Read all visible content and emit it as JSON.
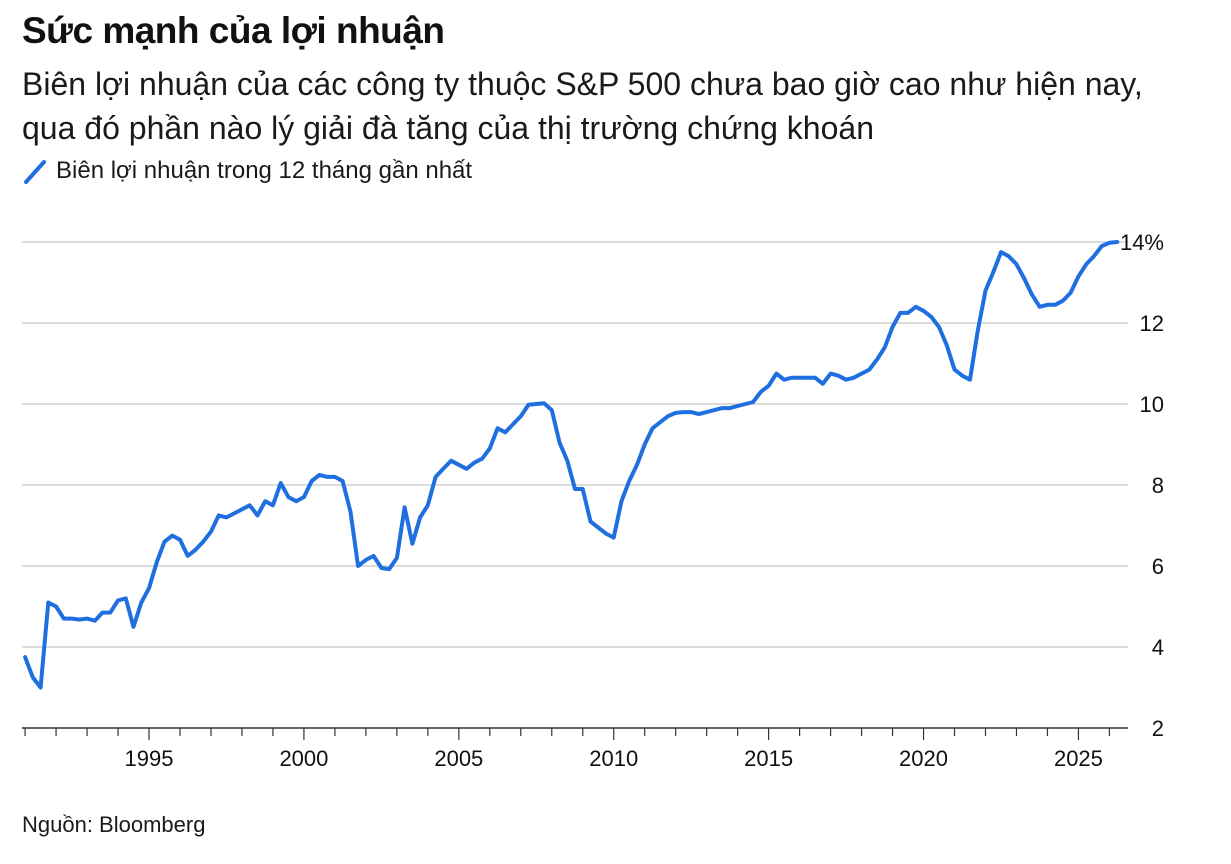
{
  "header": {
    "title": "Sức mạnh của lợi nhuận",
    "subtitle": "Biên lợi nhuận của các công ty thuộc S&P 500 chưa bao giờ cao như hiện nay, qua đó phần nào lý giải đà tăng của thị trường chứng khoán"
  },
  "footer": {
    "source": "Nguồn: Bloomberg"
  },
  "colors": {
    "line": "#1f6fe0",
    "grid": "#d0d0d0",
    "axis": "#333333"
  },
  "chart_data": {
    "type": "line",
    "title": "Sức mạnh của lợi nhuận",
    "subtitle": "Biên lợi nhuận của các công ty thuộc S&P 500 chưa bao giờ cao như hiện nay, qua đó phần nào lý giải đà tăng của thị trường chứng khoán",
    "ylim": [
      2,
      14
    ],
    "xlim": [
      1990.9,
      2026.6
    ],
    "y_ticks": [
      2,
      4,
      6,
      8,
      10,
      12,
      14
    ],
    "y_tick_labels": [
      "2",
      "4",
      "6",
      "8",
      "10",
      "12",
      "14%"
    ],
    "x_ticks": [
      1995,
      2000,
      2005,
      2010,
      2015,
      2020,
      2025
    ],
    "x_tick_labels": [
      "1995",
      "2000",
      "2005",
      "2010",
      "2015",
      "2020",
      "2025"
    ],
    "grid": true,
    "legend_position": "top-left",
    "series": [
      {
        "name": "Biên lợi nhuận trong 12 tháng gần nhất",
        "points": [
          [
            1991.0,
            3.75
          ],
          [
            1991.25,
            3.25
          ],
          [
            1991.5,
            3.0
          ],
          [
            1991.75,
            5.1
          ],
          [
            1992.0,
            5.0
          ],
          [
            1992.25,
            4.7
          ],
          [
            1992.5,
            4.7
          ],
          [
            1992.75,
            4.68
          ],
          [
            1993.0,
            4.7
          ],
          [
            1993.25,
            4.65
          ],
          [
            1993.5,
            4.85
          ],
          [
            1993.75,
            4.85
          ],
          [
            1994.0,
            5.15
          ],
          [
            1994.25,
            5.2
          ],
          [
            1994.5,
            4.5
          ],
          [
            1994.75,
            5.1
          ],
          [
            1995.0,
            5.45
          ],
          [
            1995.25,
            6.1
          ],
          [
            1995.5,
            6.6
          ],
          [
            1995.75,
            6.75
          ],
          [
            1996.0,
            6.65
          ],
          [
            1996.25,
            6.25
          ],
          [
            1996.5,
            6.4
          ],
          [
            1996.75,
            6.6
          ],
          [
            1997.0,
            6.85
          ],
          [
            1997.25,
            7.25
          ],
          [
            1997.5,
            7.2
          ],
          [
            1997.75,
            7.3
          ],
          [
            1998.0,
            7.4
          ],
          [
            1998.25,
            7.5
          ],
          [
            1998.5,
            7.25
          ],
          [
            1998.75,
            7.6
          ],
          [
            1999.0,
            7.5
          ],
          [
            1999.25,
            8.05
          ],
          [
            1999.5,
            7.7
          ],
          [
            1999.75,
            7.6
          ],
          [
            2000.0,
            7.7
          ],
          [
            2000.25,
            8.1
          ],
          [
            2000.5,
            8.25
          ],
          [
            2000.75,
            8.2
          ],
          [
            2001.0,
            8.2
          ],
          [
            2001.25,
            8.1
          ],
          [
            2001.5,
            7.35
          ],
          [
            2001.75,
            6.0
          ],
          [
            2002.0,
            6.15
          ],
          [
            2002.25,
            6.25
          ],
          [
            2002.5,
            5.95
          ],
          [
            2002.75,
            5.92
          ],
          [
            2003.0,
            6.2
          ],
          [
            2003.25,
            7.45
          ],
          [
            2003.5,
            6.55
          ],
          [
            2003.75,
            7.2
          ],
          [
            2004.0,
            7.5
          ],
          [
            2004.25,
            8.2
          ],
          [
            2004.5,
            8.4
          ],
          [
            2004.75,
            8.6
          ],
          [
            2005.0,
            8.5
          ],
          [
            2005.25,
            8.4
          ],
          [
            2005.5,
            8.55
          ],
          [
            2005.75,
            8.65
          ],
          [
            2006.0,
            8.9
          ],
          [
            2006.25,
            9.4
          ],
          [
            2006.5,
            9.3
          ],
          [
            2006.75,
            9.5
          ],
          [
            2007.0,
            9.7
          ],
          [
            2007.25,
            9.98
          ],
          [
            2007.5,
            10.0
          ],
          [
            2007.75,
            10.02
          ],
          [
            2008.0,
            9.85
          ],
          [
            2008.25,
            9.05
          ],
          [
            2008.5,
            8.6
          ],
          [
            2008.75,
            7.9
          ],
          [
            2009.0,
            7.9
          ],
          [
            2009.25,
            7.1
          ],
          [
            2009.5,
            6.95
          ],
          [
            2009.75,
            6.8
          ],
          [
            2010.0,
            6.7
          ],
          [
            2010.25,
            7.6
          ],
          [
            2010.5,
            8.1
          ],
          [
            2010.75,
            8.5
          ],
          [
            2011.0,
            9.0
          ],
          [
            2011.25,
            9.4
          ],
          [
            2011.5,
            9.55
          ],
          [
            2011.75,
            9.7
          ],
          [
            2012.0,
            9.78
          ],
          [
            2012.25,
            9.8
          ],
          [
            2012.5,
            9.8
          ],
          [
            2012.75,
            9.75
          ],
          [
            2013.0,
            9.8
          ],
          [
            2013.25,
            9.85
          ],
          [
            2013.5,
            9.9
          ],
          [
            2013.75,
            9.9
          ],
          [
            2014.0,
            9.95
          ],
          [
            2014.25,
            10.0
          ],
          [
            2014.5,
            10.05
          ],
          [
            2014.75,
            10.3
          ],
          [
            2015.0,
            10.45
          ],
          [
            2015.25,
            10.75
          ],
          [
            2015.5,
            10.6
          ],
          [
            2015.75,
            10.65
          ],
          [
            2016.0,
            10.65
          ],
          [
            2016.25,
            10.65
          ],
          [
            2016.5,
            10.65
          ],
          [
            2016.75,
            10.5
          ],
          [
            2017.0,
            10.75
          ],
          [
            2017.25,
            10.7
          ],
          [
            2017.5,
            10.6
          ],
          [
            2017.75,
            10.65
          ],
          [
            2018.0,
            10.75
          ],
          [
            2018.25,
            10.85
          ],
          [
            2018.5,
            11.1
          ],
          [
            2018.75,
            11.4
          ],
          [
            2019.0,
            11.9
          ],
          [
            2019.25,
            12.25
          ],
          [
            2019.5,
            12.25
          ],
          [
            2019.75,
            12.4
          ],
          [
            2020.0,
            12.3
          ],
          [
            2020.25,
            12.15
          ],
          [
            2020.5,
            11.9
          ],
          [
            2020.75,
            11.45
          ],
          [
            2021.0,
            10.85
          ],
          [
            2021.25,
            10.7
          ],
          [
            2021.5,
            10.6
          ],
          [
            2021.75,
            11.8
          ],
          [
            2022.0,
            12.8
          ],
          [
            2022.25,
            13.25
          ],
          [
            2022.5,
            13.75
          ],
          [
            2022.75,
            13.65
          ],
          [
            2023.0,
            13.45
          ],
          [
            2023.25,
            13.1
          ],
          [
            2023.5,
            12.7
          ],
          [
            2023.75,
            12.4
          ],
          [
            2024.0,
            12.45
          ],
          [
            2024.25,
            12.45
          ],
          [
            2024.5,
            12.55
          ],
          [
            2024.75,
            12.75
          ],
          [
            2025.0,
            13.15
          ],
          [
            2025.25,
            13.45
          ],
          [
            2025.5,
            13.65
          ],
          [
            2025.75,
            13.9
          ],
          [
            2026.0,
            13.98
          ],
          [
            2026.25,
            14.0
          ]
        ]
      }
    ]
  }
}
